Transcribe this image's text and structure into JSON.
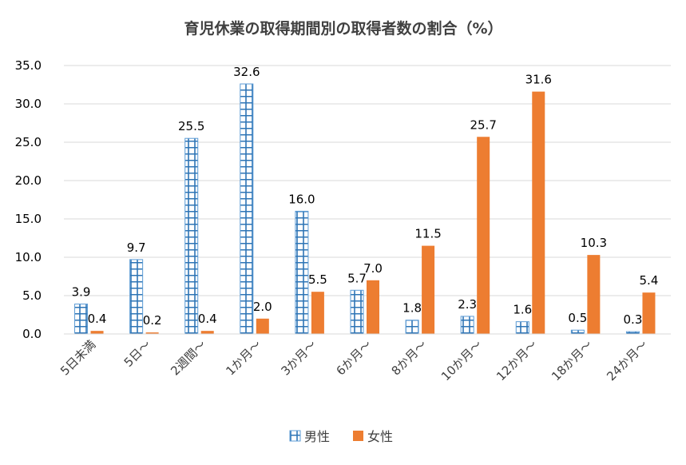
{
  "chart_data": {
    "type": "bar",
    "title": "育児休業の取得期間別の取得者数の割合（%）",
    "categories": [
      "5日未満",
      "5日～",
      "2週間～",
      "1か月～",
      "3か月～",
      "6か月～",
      "8か月～",
      "10か月～",
      "12か月～",
      "18か月～",
      "24か月～"
    ],
    "series": [
      {
        "name": "男性",
        "values": [
          3.9,
          9.7,
          25.5,
          32.6,
          16.0,
          5.7,
          1.8,
          2.3,
          1.6,
          0.5,
          0.3
        ],
        "color": "#2e75b6",
        "pattern": "grid"
      },
      {
        "name": "女性",
        "values": [
          0.4,
          0.2,
          0.4,
          2.0,
          5.5,
          7.0,
          11.5,
          25.7,
          31.6,
          10.3,
          5.4
        ],
        "color": "#ed7d31",
        "pattern": "solid"
      }
    ],
    "yticks": [
      "0.0",
      "5.0",
      "10.0",
      "15.0",
      "20.0",
      "25.0",
      "30.0",
      "35.0"
    ],
    "ylim": [
      0,
      35
    ],
    "grid": true,
    "legend": "bottom",
    "data_labels": true
  }
}
